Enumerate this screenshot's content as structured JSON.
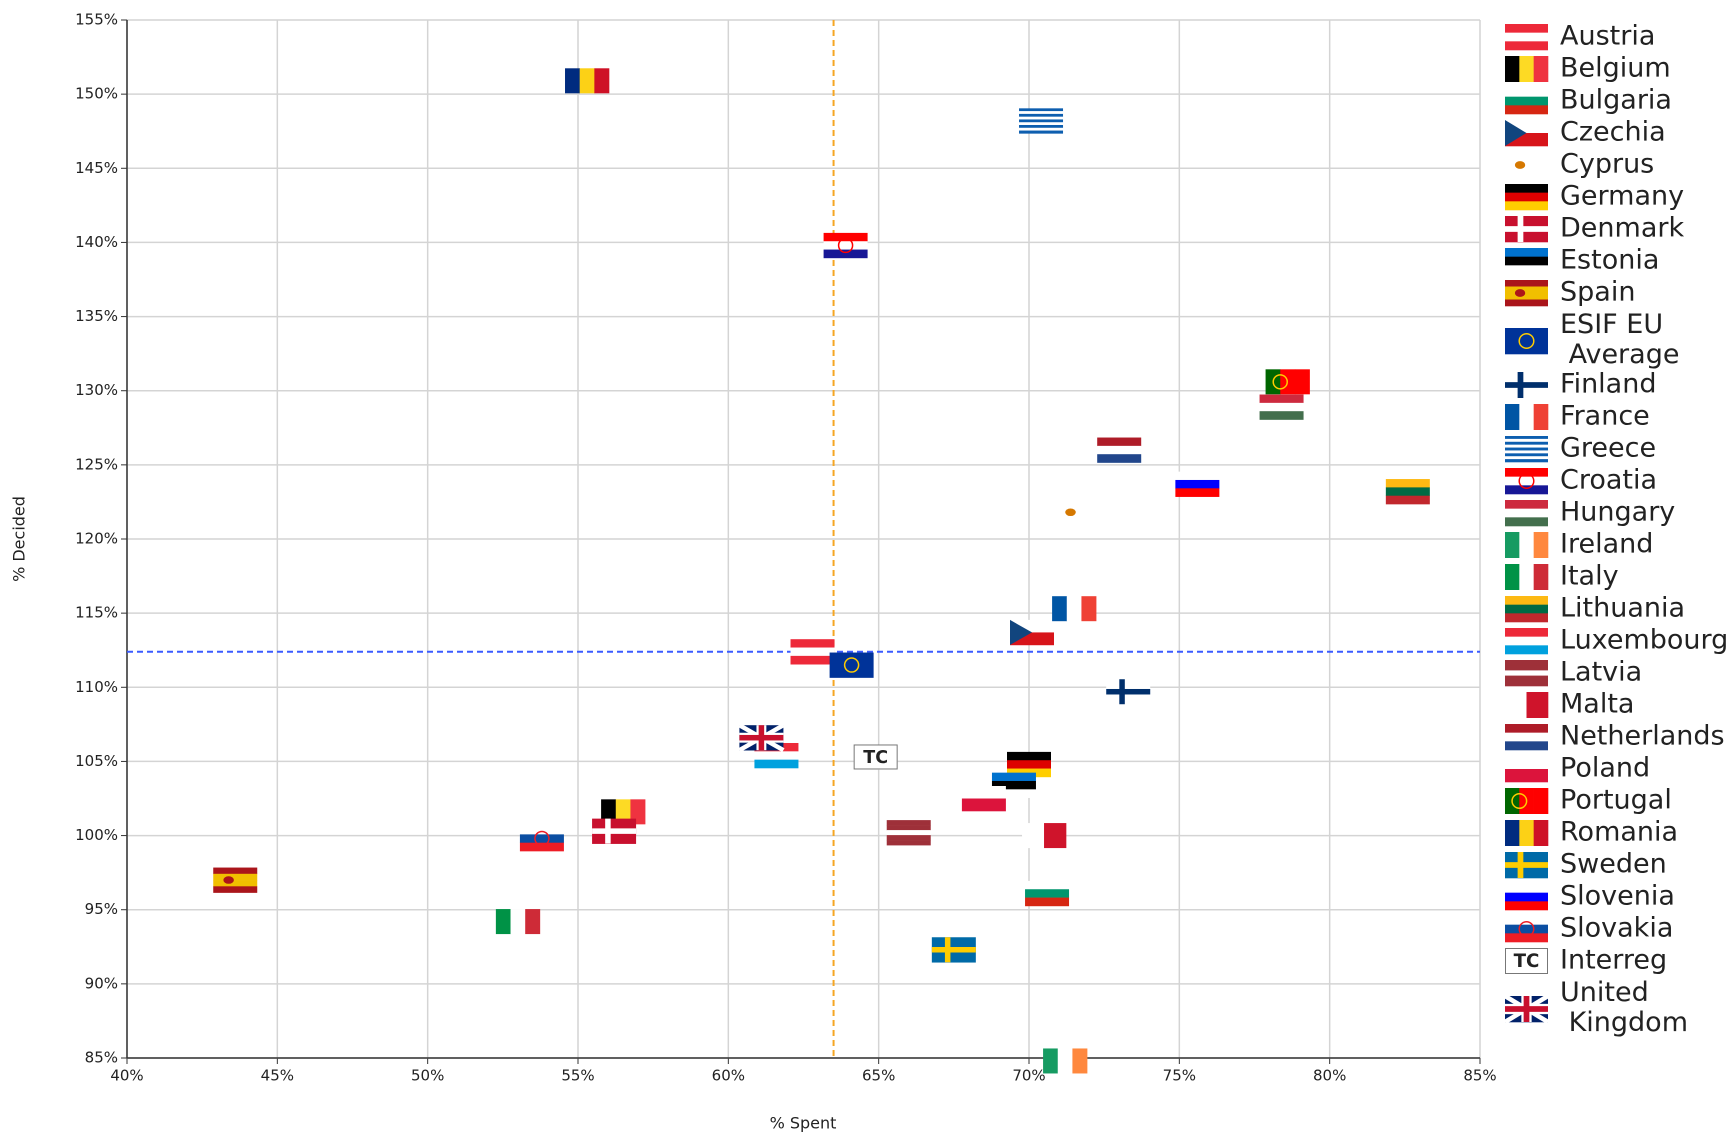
{
  "chart_data": {
    "type": "scatter",
    "x_label": "% Spent",
    "y_label": "% Decided",
    "xlim": [
      40,
      85
    ],
    "ylim": [
      85,
      155
    ],
    "xticks": [
      {
        "value": 40,
        "label": "40%"
      },
      {
        "value": 45,
        "label": "45%"
      },
      {
        "value": 50,
        "label": "50%"
      },
      {
        "value": 55,
        "label": "55%"
      },
      {
        "value": 60,
        "label": "60%"
      },
      {
        "value": 65,
        "label": "65%"
      },
      {
        "value": 70,
        "label": "70%"
      },
      {
        "value": 75,
        "label": "75%"
      },
      {
        "value": 80,
        "label": "80%"
      },
      {
        "value": 85,
        "label": "85%"
      }
    ],
    "yticks": [
      {
        "value": 85,
        "label": "85%"
      },
      {
        "value": 90,
        "label": "90%"
      },
      {
        "value": 95,
        "label": "95%"
      },
      {
        "value": 100,
        "label": "100%"
      },
      {
        "value": 105,
        "label": "105%"
      },
      {
        "value": 110,
        "label": "110%"
      },
      {
        "value": 115,
        "label": "115%"
      },
      {
        "value": 120,
        "label": "120%"
      },
      {
        "value": 125,
        "label": "125%"
      },
      {
        "value": 130,
        "label": "130%"
      },
      {
        "value": 135,
        "label": "135%"
      },
      {
        "value": 140,
        "label": "140%"
      },
      {
        "value": 145,
        "label": "145%"
      },
      {
        "value": 150,
        "label": "150%"
      },
      {
        "value": 155,
        "label": "155%"
      }
    ],
    "grid": true,
    "legend": "right",
    "reference_lines": {
      "x": {
        "value": 63.5,
        "color": "#f5a623"
      },
      "y": {
        "value": 112.4,
        "color": "#3b5bff"
      }
    },
    "series": [
      {
        "name": "Austria",
        "x": [
          62.8
        ],
        "values": [
          112.4
        ],
        "flag": {
          "dir": "h",
          "colors": [
            "#ed2939",
            "#ffffff",
            "#ed2939"
          ]
        }
      },
      {
        "name": "Belgium",
        "x": [
          56.5
        ],
        "values": [
          101.6
        ],
        "flag": {
          "dir": "v",
          "colors": [
            "#000000",
            "#fdda24",
            "#ef3340"
          ]
        }
      },
      {
        "name": "Bulgaria",
        "x": [
          70.6
        ],
        "values": [
          96.1
        ],
        "flag": {
          "dir": "h",
          "colors": [
            "#ffffff",
            "#00966e",
            "#d62612"
          ]
        }
      },
      {
        "name": "Czechia",
        "x": [
          70.1
        ],
        "values": [
          113.7
        ],
        "flag": {
          "dir": "h",
          "colors": [
            "#ffffff",
            "#d7141a"
          ],
          "triangle": "#11457e"
        }
      },
      {
        "name": "Cyprus",
        "x": [
          71.6
        ],
        "values": [
          121.8
        ],
        "flag": {
          "dir": "h",
          "colors": [
            "#ffffff"
          ],
          "emblem": {
            "color": "#d57800",
            "ring": false
          }
        }
      },
      {
        "name": "Germany",
        "x": [
          70.0
        ],
        "values": [
          104.8
        ],
        "flag": {
          "dir": "h",
          "colors": [
            "#000000",
            "#dd0000",
            "#ffce00"
          ]
        }
      },
      {
        "name": "Denmark",
        "x": [
          56.2
        ],
        "values": [
          100.3
        ],
        "flag": {
          "dir": "h",
          "colors": [
            "#c8102e"
          ],
          "cross": "#ffffff"
        }
      },
      {
        "name": "Estonia",
        "x": [
          69.5
        ],
        "values": [
          103.4
        ],
        "flag": {
          "dir": "h",
          "colors": [
            "#0072ce",
            "#000000",
            "#ffffff"
          ]
        }
      },
      {
        "name": "Spain",
        "x": [
          43.6
        ],
        "values": [
          97.0
        ],
        "flag": {
          "dir": "h",
          "colors": [
            "#aa151b",
            "#f1bf00",
            "#f1bf00",
            "#aa151b"
          ],
          "emblem": {
            "color": "#ad1519",
            "ring": false
          }
        }
      },
      {
        "name": "ESIF EU Average",
        "x": [
          64.1
        ],
        "values": [
          111.5
        ],
        "flag": {
          "dir": "h",
          "colors": [
            "#003399"
          ],
          "emblem": {
            "color": "#ffcc00",
            "ring": true
          }
        }
      },
      {
        "name": "Finland",
        "x": [
          73.3
        ],
        "values": [
          109.7
        ],
        "flag": {
          "dir": "h",
          "colors": [
            "#ffffff"
          ],
          "cross": "#002f6c"
        }
      },
      {
        "name": "France",
        "x": [
          71.5
        ],
        "values": [
          115.3
        ],
        "flag": {
          "dir": "v",
          "colors": [
            "#0055a4",
            "#ffffff",
            "#ef4135"
          ]
        }
      },
      {
        "name": "Greece",
        "x": [
          70.4
        ],
        "values": [
          148.2
        ],
        "flag": {
          "dir": "h",
          "colors": [
            "#0d5eaf",
            "#ffffff",
            "#0d5eaf",
            "#ffffff",
            "#0d5eaf",
            "#ffffff",
            "#0d5eaf",
            "#ffffff",
            "#0d5eaf"
          ]
        }
      },
      {
        "name": "Croatia",
        "x": [
          63.9
        ],
        "values": [
          139.8
        ],
        "flag": {
          "dir": "h",
          "colors": [
            "#ff0000",
            "#ffffff",
            "#171796"
          ],
          "emblem": {
            "color": "#ff0000",
            "ring": true
          }
        }
      },
      {
        "name": "Hungary",
        "x": [
          78.4
        ],
        "values": [
          128.9
        ],
        "flag": {
          "dir": "h",
          "colors": [
            "#cd2a3e",
            "#ffffff",
            "#436f4d"
          ]
        }
      },
      {
        "name": "Ireland",
        "x": [
          71.2
        ],
        "values": [
          84.8
        ],
        "flag": {
          "dir": "v",
          "colors": [
            "#169b62",
            "#ffffff",
            "#ff883e"
          ]
        }
      },
      {
        "name": "Italy",
        "x": [
          53.0
        ],
        "values": [
          94.2
        ],
        "flag": {
          "dir": "v",
          "colors": [
            "#009246",
            "#ffffff",
            "#ce2b37"
          ]
        }
      },
      {
        "name": "Lithuania",
        "x": [
          82.6
        ],
        "values": [
          123.2
        ],
        "flag": {
          "dir": "h",
          "colors": [
            "#fdb913",
            "#006a44",
            "#c1272d"
          ]
        }
      },
      {
        "name": "Luxembourg",
        "x": [
          61.6
        ],
        "values": [
          105.4
        ],
        "flag": {
          "dir": "h",
          "colors": [
            "#ed2939",
            "#ffffff",
            "#00a1de"
          ]
        }
      },
      {
        "name": "Latvia",
        "x": [
          66.0
        ],
        "values": [
          100.2
        ],
        "flag": {
          "dir": "h",
          "colors": [
            "#9e3039",
            "#9e3039",
            "#ffffff",
            "#9e3039",
            "#9e3039"
          ]
        }
      },
      {
        "name": "Malta",
        "x": [
          70.5
        ],
        "values": [
          100.0
        ],
        "flag": {
          "dir": "v",
          "colors": [
            "#ffffff",
            "#cf142b"
          ]
        }
      },
      {
        "name": "Netherlands",
        "x": [
          73.0
        ],
        "values": [
          126.0
        ],
        "flag": {
          "dir": "h",
          "colors": [
            "#ae1c28",
            "#ffffff",
            "#21468b"
          ]
        }
      },
      {
        "name": "Poland",
        "x": [
          68.5
        ],
        "values": [
          102.5
        ],
        "flag": {
          "dir": "h",
          "colors": [
            "#ffffff",
            "#dc143c"
          ]
        }
      },
      {
        "name": "Portugal",
        "x": [
          78.6
        ],
        "values": [
          130.6
        ],
        "flag": {
          "dir": "v",
          "colors": [
            "#006600",
            "#ff0000",
            "#ff0000"
          ],
          "emblem": {
            "color": "#ffcc00",
            "ring": true
          }
        }
      },
      {
        "name": "Romania",
        "x": [
          55.3
        ],
        "values": [
          150.9
        ],
        "flag": {
          "dir": "v",
          "colors": [
            "#002b7f",
            "#fcd116",
            "#ce1126"
          ]
        }
      },
      {
        "name": "Sweden",
        "x": [
          67.5
        ],
        "values": [
          92.3
        ],
        "flag": {
          "dir": "h",
          "colors": [
            "#006aa7"
          ],
          "cross": "#fecc00"
        }
      },
      {
        "name": "Slovenia",
        "x": [
          75.6
        ],
        "values": [
          123.7
        ],
        "flag": {
          "dir": "h",
          "colors": [
            "#ffffff",
            "#0000ff",
            "#ff0000"
          ]
        }
      },
      {
        "name": "Slovakia",
        "x": [
          53.8
        ],
        "values": [
          99.8
        ],
        "flag": {
          "dir": "h",
          "colors": [
            "#ffffff",
            "#0b4ea2",
            "#ee1c25"
          ],
          "emblem": {
            "color": "#ee1c25",
            "ring": true
          }
        }
      },
      {
        "name": "Interreg",
        "x": [
          64.9
        ],
        "values": [
          105.3
        ],
        "flag": {
          "dir": "h",
          "colors": [
            "#ffffff"
          ],
          "badge": "TC"
        }
      },
      {
        "name": "United Kingdom",
        "x": [
          61.1
        ],
        "values": [
          106.6
        ],
        "flag": {
          "dir": "h",
          "colors": [
            "#012169"
          ],
          "cross": "#c8102e",
          "cross_center": true
        }
      }
    ]
  }
}
